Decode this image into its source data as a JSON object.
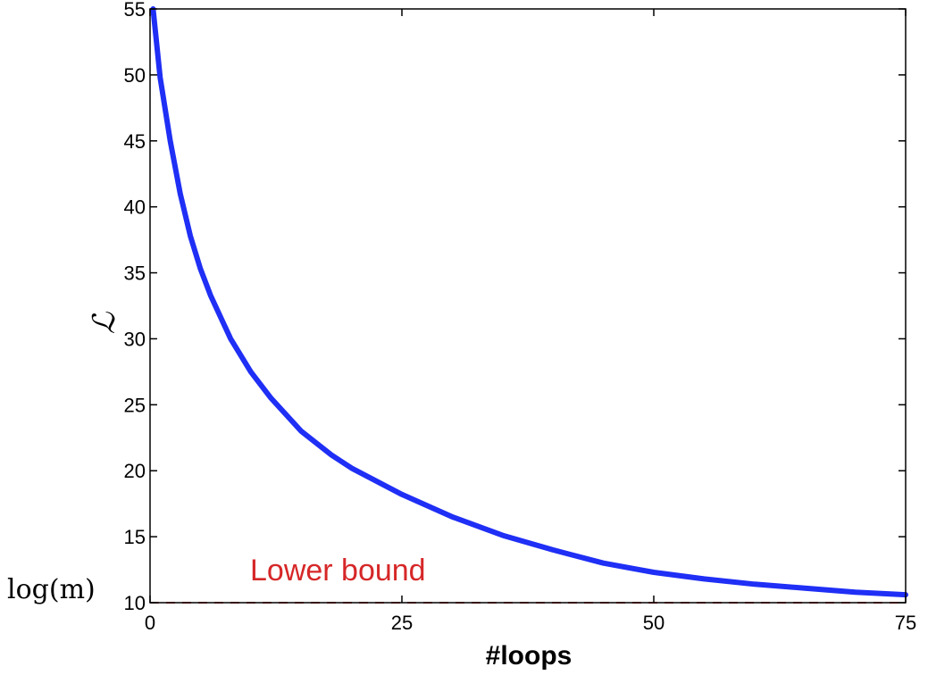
{
  "chart_data": {
    "type": "line",
    "title": "",
    "xlabel": "#loops",
    "ylabel": "ℒ",
    "xlim": [
      0,
      75
    ],
    "ylim": [
      10,
      55
    ],
    "xticks": [
      0,
      25,
      50,
      75
    ],
    "yticks": [
      10,
      15,
      20,
      25,
      30,
      35,
      40,
      45,
      50,
      55
    ],
    "grid": false,
    "legend": "none",
    "series": [
      {
        "color": "#1f2ff5",
        "x": [
          0.3,
          1,
          2,
          3,
          4,
          5,
          6,
          8,
          10,
          12,
          15,
          18,
          20,
          25,
          30,
          35,
          40,
          45,
          50,
          55,
          60,
          65,
          70,
          75
        ],
        "y": [
          55,
          49.8,
          45.0,
          41.0,
          37.8,
          35.3,
          33.3,
          30.0,
          27.5,
          25.5,
          23.0,
          21.2,
          20.2,
          18.2,
          16.5,
          15.1,
          14.0,
          13.0,
          12.3,
          11.8,
          11.4,
          11.1,
          10.8,
          10.6
        ]
      }
    ],
    "reference_line": {
      "y": 10,
      "style": "dashed",
      "color": "#d62728",
      "label": "Lower bound",
      "axis_annotation": "log(m)"
    }
  }
}
